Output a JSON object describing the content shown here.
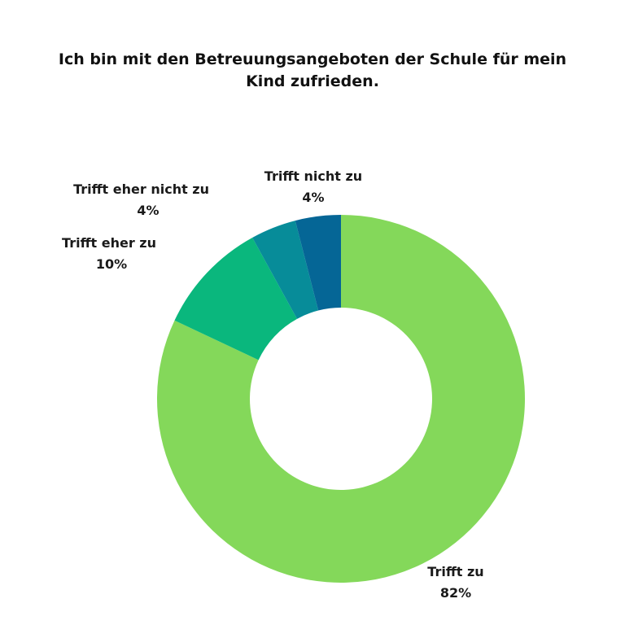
{
  "chart_data": {
    "type": "pie",
    "donut": true,
    "title": "Ich bin mit den Betreuungsangeboten der Schule für mein Kind zufrieden.",
    "slices": [
      {
        "label": "Trifft zu",
        "value": 82,
        "value_label": "82%",
        "color": "#84d85a"
      },
      {
        "label": "Trifft eher zu",
        "value": 10,
        "value_label": "10%",
        "color": "#0ab77d"
      },
      {
        "label": "Trifft eher nicht zu",
        "value": 4,
        "value_label": "4%",
        "color": "#078c99"
      },
      {
        "label": "Trifft nicht zu",
        "value": 4,
        "value_label": "4%",
        "color": "#056696"
      }
    ]
  }
}
